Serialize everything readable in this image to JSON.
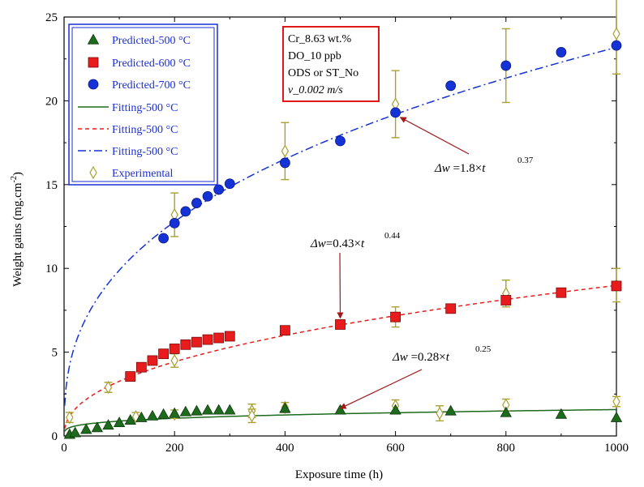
{
  "chart_data": {
    "type": "scatter",
    "xlabel": "Exposure time (h)",
    "ylabel": "Weight gains (mg.cm",
    "ylabel_sup": "-2",
    "ylabel_close": ")",
    "xlim": [
      0,
      1000
    ],
    "ylim": [
      0,
      25
    ],
    "xticks": [
      0,
      200,
      400,
      600,
      800,
      1000
    ],
    "yticks": [
      0,
      5,
      10,
      15,
      20,
      25
    ],
    "info_box": [
      "Cr_8.63 wt.%",
      "DO_10 ppb",
      "ODS or ST_No",
      "v_0.002 m/s"
    ],
    "colors": {
      "p500": "#1e6b1e",
      "p600": "#e81c1c",
      "p700": "#1532d6",
      "exp": "#a8a032",
      "legend_text": "#1a2fd6",
      "arrow": "#a01818",
      "box": "#1a2fd6",
      "info_border": "#e01818"
    },
    "legend": [
      {
        "label": "Predicted-500 °C",
        "marker": "triangle"
      },
      {
        "label": "Predicted-600 °C",
        "marker": "square"
      },
      {
        "label": "Predicted-700 °C",
        "marker": "circle"
      },
      {
        "label": "Fitting-500 °C",
        "line": "solid"
      },
      {
        "label": "Fitting-500 °C",
        "line": "dash"
      },
      {
        "label": "Fitting-500 °C",
        "line": "dashdot"
      },
      {
        "label": "Experimental",
        "marker": "diamond"
      }
    ],
    "series": [
      {
        "name": "Predicted-500 °C",
        "x": [
          10,
          20,
          40,
          60,
          80,
          100,
          120,
          140,
          160,
          180,
          200,
          220,
          240,
          260,
          280,
          300,
          400,
          500,
          600,
          700,
          800,
          900,
          1000
        ],
        "y": [
          0.1,
          0.2,
          0.4,
          0.5,
          0.65,
          0.8,
          0.95,
          1.1,
          1.2,
          1.3,
          1.35,
          1.45,
          1.5,
          1.55,
          1.55,
          1.55,
          1.65,
          1.55,
          1.55,
          1.5,
          1.4,
          1.3,
          1.1
        ]
      },
      {
        "name": "Predicted-600 °C",
        "x": [
          120,
          140,
          160,
          180,
          200,
          220,
          240,
          260,
          280,
          300,
          400,
          500,
          600,
          700,
          800,
          900,
          1000
        ],
        "y": [
          3.55,
          4.1,
          4.5,
          4.9,
          5.2,
          5.45,
          5.6,
          5.75,
          5.85,
          5.95,
          6.3,
          6.65,
          7.1,
          7.6,
          8.1,
          8.55,
          8.95
        ]
      },
      {
        "name": "Predicted-700 °C",
        "x": [
          180,
          200,
          220,
          240,
          260,
          280,
          300,
          400,
          500,
          600,
          700,
          800,
          900,
          1000
        ],
        "y": [
          11.8,
          12.7,
          13.4,
          13.9,
          14.3,
          14.7,
          15.05,
          16.3,
          17.6,
          19.3,
          20.9,
          22.1,
          22.9,
          23.3
        ]
      },
      {
        "name": "Experimental",
        "points": [
          {
            "x": 10,
            "y": 1.1,
            "err": 0.3
          },
          {
            "x": 80,
            "y": 2.9,
            "err": 0.3
          },
          {
            "x": 130,
            "y": 1.15,
            "err": 0.25
          },
          {
            "x": 200,
            "y": 4.5,
            "err": 0.4
          },
          {
            "x": 200,
            "y": 1.3,
            "err": 0.25
          },
          {
            "x": 200,
            "y": 13.2,
            "err": 1.3
          },
          {
            "x": 340,
            "y": 1.5,
            "err": 0.4
          },
          {
            "x": 340,
            "y": 1.2,
            "err": 0.4
          },
          {
            "x": 400,
            "y": 1.7,
            "err": 0.3
          },
          {
            "x": 400,
            "y": 17.0,
            "err": 1.7
          },
          {
            "x": 600,
            "y": 7.1,
            "err": 0.6
          },
          {
            "x": 600,
            "y": 1.8,
            "err": 0.35
          },
          {
            "x": 600,
            "y": 19.8,
            "err": 2.0
          },
          {
            "x": 680,
            "y": 1.35,
            "err": 0.45
          },
          {
            "x": 800,
            "y": 8.5,
            "err": 0.8
          },
          {
            "x": 800,
            "y": 1.85,
            "err": 0.35
          },
          {
            "x": 800,
            "y": 22.1,
            "err": 2.2
          },
          {
            "x": 1000,
            "y": 9.0,
            "err": 1.0
          },
          {
            "x": 1000,
            "y": 2.05,
            "err": 0.3
          },
          {
            "x": 1000,
            "y": 24.0,
            "err": 2.4
          }
        ]
      },
      {
        "name": "Fitting-500 °C (500)",
        "style": "solid",
        "a": 0.28,
        "b": 0.25
      },
      {
        "name": "Fitting-500 °C (600)",
        "style": "dash",
        "a": 0.43,
        "b": 0.44
      },
      {
        "name": "Fitting-500 °C (700)",
        "style": "dashdot",
        "a": 1.8,
        "b": 0.37
      }
    ],
    "annotations": [
      {
        "prefix": "Δw",
        "text": " =1.8×",
        "var": "t",
        "sup": "0.37",
        "arrow_to": [
          600,
          19.3
        ]
      },
      {
        "prefix": "Δw",
        "text": "=0.43×",
        "var": "t",
        "sup": "0.44",
        "arrow_to": [
          500,
          6.65
        ]
      },
      {
        "prefix": "Δw",
        "text": " =0.28×",
        "var": "t",
        "sup": "0.25",
        "arrow_to": [
          500,
          1.55
        ]
      }
    ]
  }
}
